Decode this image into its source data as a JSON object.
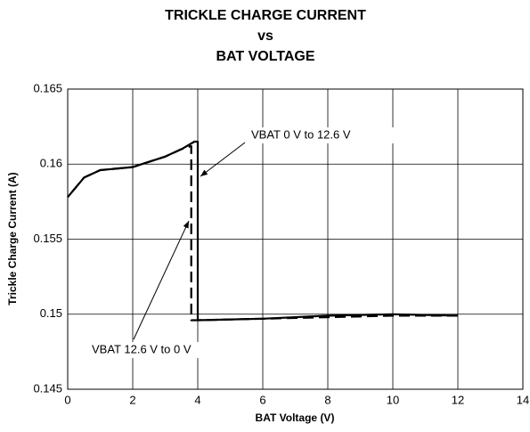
{
  "chart_data": {
    "type": "line",
    "title": [
      "TRICKLE CHARGE CURRENT",
      "vs",
      "BAT VOLTAGE"
    ],
    "x_label": "BAT Voltage (V)",
    "y_label": "Trickle Charge Current (A)",
    "xlim": [
      0,
      14
    ],
    "xticks": [
      0,
      2,
      4,
      6,
      8,
      10,
      12,
      14
    ],
    "ylim": [
      0.145,
      0.165
    ],
    "yticks": [
      0.145,
      0.15,
      0.155,
      0.16,
      0.165
    ],
    "grid": true,
    "series": [
      {
        "name": "VBAT 0 V to 12.6 V",
        "color": "#000000",
        "dash": "solid",
        "x": [
          0,
          0.5,
          1,
          2,
          3,
          3.5,
          3.9,
          4,
          4,
          6,
          8,
          10,
          12
        ],
        "values": [
          0.1578,
          0.1591,
          0.1596,
          0.1598,
          0.1605,
          0.161,
          0.1615,
          0.1615,
          0.1496,
          0.1497,
          0.1499,
          0.15,
          0.1499
        ]
      },
      {
        "name": "VBAT 12.6 V to 0 V",
        "color": "#000000",
        "dash": "dashed",
        "x": [
          12,
          10,
          8,
          6,
          4,
          3.8,
          3.8,
          3.5,
          3,
          2,
          1,
          0.5,
          0
        ],
        "values": [
          0.1499,
          0.1499,
          0.1498,
          0.1497,
          0.1496,
          0.1496,
          0.1612,
          0.161,
          0.1605,
          0.1598,
          0.1596,
          0.1591,
          0.1578
        ]
      }
    ]
  }
}
